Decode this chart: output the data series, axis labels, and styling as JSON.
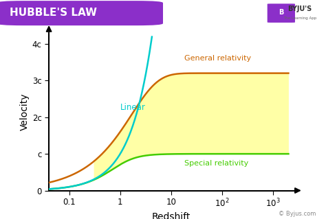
{
  "title": "HUBBLE'S LAW",
  "title_bg": "#8B2FC9",
  "title_color": "#ffffff",
  "xlabel": "Redshift",
  "ylabel": "Velocity",
  "bg_color": "#ffffff",
  "plot_bg": "#ffffff",
  "ytick_labels": [
    "0",
    "c",
    "2c",
    "3c",
    "4c"
  ],
  "ytick_vals": [
    0,
    1,
    2,
    3,
    4
  ],
  "linear_color": "#00CCCC",
  "general_color": "#CC6600",
  "special_color": "#44CC00",
  "fill_color": "#FFFF88",
  "fill_alpha": 0.75,
  "label_linear": "Linear",
  "label_general": "General relativity",
  "label_special": "Special relativity",
  "watermark": "© Byjus.com",
  "xmin": 0.04,
  "xmax": 2500,
  "ymin": 0,
  "ymax": 4.3,
  "special_asymptote": 0.88,
  "general_asymptote": 3.2
}
